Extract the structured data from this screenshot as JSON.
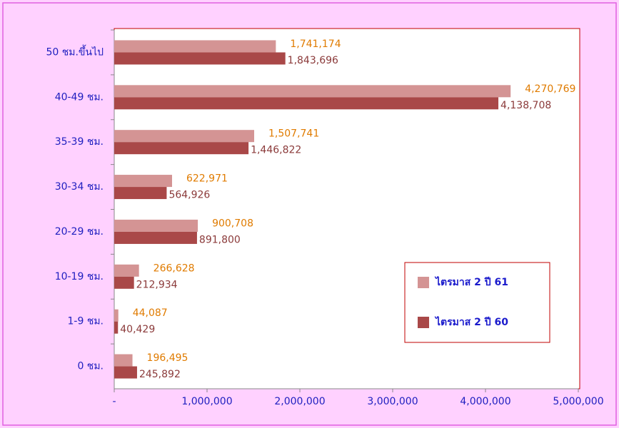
{
  "chart_data": {
    "type": "hbar",
    "categories": [
      "50 ชม.ขึ้นไป",
      "40-49 ชม.",
      "35-39 ชม.",
      "30-34 ชม.",
      "20-29 ชม.",
      "10-19 ชม.",
      "1-9 ชม.",
      "0 ชม."
    ],
    "series": [
      {
        "name": "ไตรมาส 2 ปี 61",
        "color": "#d49494",
        "label_color": "#e07b00",
        "values": [
          1741174,
          4270769,
          1507741,
          622971,
          900708,
          266628,
          44087,
          196495
        ],
        "value_labels": [
          "1,741,174",
          "4,270,769",
          "1,507,741",
          "622,971",
          "900,708",
          "266,628",
          "44,087",
          "196,495"
        ]
      },
      {
        "name": "ไตรมาส 2 ปี 60",
        "color": "#a94848",
        "label_color": "#8b3a3a",
        "values": [
          1843696,
          4138708,
          1446822,
          564926,
          891800,
          212934,
          40429,
          245892
        ],
        "value_labels": [
          "1,843,696",
          "4,138,708",
          "1,446,822",
          "564,926",
          "891,800",
          "212,934",
          "40,429",
          "245,892"
        ]
      }
    ],
    "xlim": [
      0,
      5000000
    ],
    "xticks": [
      {
        "value": 0,
        "label": "-"
      },
      {
        "value": 1000000,
        "label": "1,000,000"
      },
      {
        "value": 2000000,
        "label": "2,000,000"
      },
      {
        "value": 3000000,
        "label": "3,000,000"
      },
      {
        "value": 4000000,
        "label": "4,000,000"
      },
      {
        "value": 5000000,
        "label": "5,000,000"
      }
    ],
    "legend": "lower-right"
  }
}
